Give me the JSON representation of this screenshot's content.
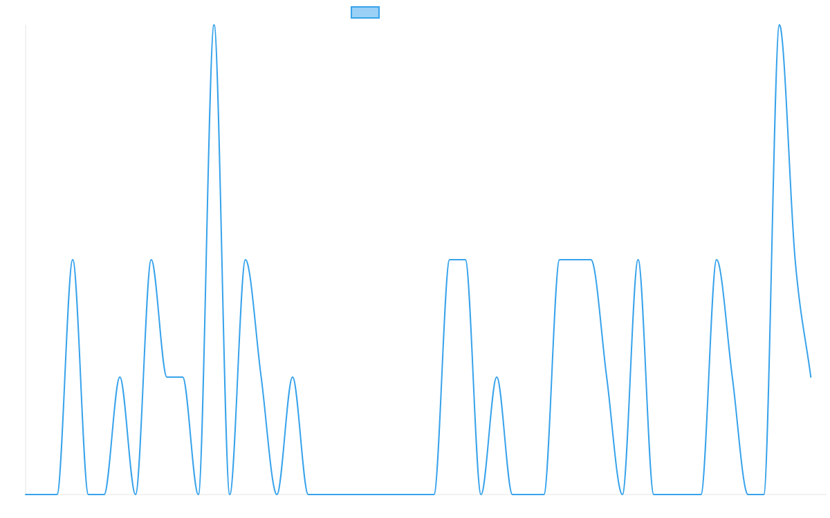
{
  "chart_data": {
    "type": "line",
    "title": "",
    "xlabel": "",
    "ylabel": "",
    "x": [
      0,
      1,
      2,
      3,
      4,
      5,
      6,
      7,
      8,
      9,
      10,
      11,
      12,
      13,
      14,
      15,
      16,
      17,
      18,
      19,
      20,
      21,
      22,
      23,
      24,
      25,
      26,
      27,
      28,
      29,
      30,
      31,
      32,
      33,
      34,
      35,
      36,
      37,
      38,
      39,
      40,
      41,
      42,
      43,
      44,
      45,
      46,
      47,
      48,
      49,
      50,
      51
    ],
    "ylim": [
      0,
      4
    ],
    "grid": false,
    "legend": "top-center",
    "series": [
      {
        "name": "",
        "color": "#36a2eb",
        "fill": "#9ad0f5",
        "values": [
          0,
          0,
          0,
          2,
          0,
          0,
          1,
          0,
          2,
          1,
          1,
          0,
          4,
          0,
          2,
          1,
          0,
          1,
          0,
          0,
          0,
          0,
          0,
          0,
          0,
          0,
          0,
          2,
          2,
          0,
          1,
          0,
          0,
          0,
          2,
          2,
          2,
          1,
          0,
          2,
          0,
          0,
          0,
          0,
          2,
          1,
          0,
          0,
          4,
          2,
          1,
          null
        ]
      }
    ]
  }
}
